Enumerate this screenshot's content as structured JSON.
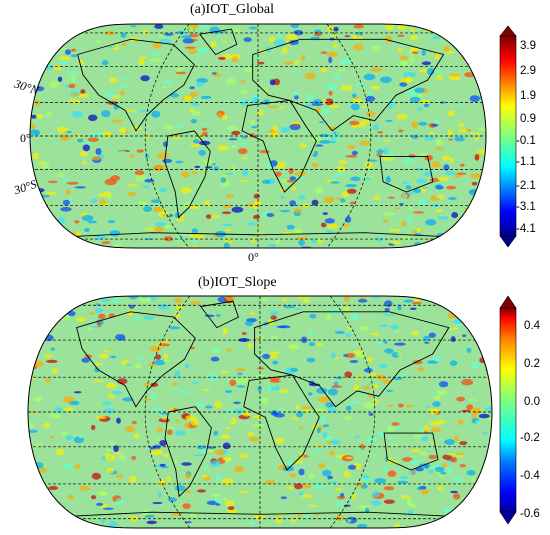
{
  "panels": [
    {
      "title": "(a)IOT_Global",
      "colorbar": {
        "ticks": [
          "3.9",
          "2.9",
          "1.9",
          "0.9",
          "-0.1",
          "-1.1",
          "-2.1",
          "-3.1",
          "-4.1"
        ],
        "extend": "both",
        "colormap": "jet"
      },
      "lat_labels": [
        "30°N",
        "0°",
        "30°S"
      ],
      "lon_labels": [
        "0°"
      ]
    },
    {
      "title": "(b)IOT_Slope",
      "colorbar": {
        "ticks": [
          "0.4",
          "0.2",
          "0.0",
          "-0.2",
          "-0.4",
          "-0.6"
        ],
        "extend": "both",
        "colormap": "jet"
      },
      "lat_labels": [],
      "lon_labels": []
    }
  ],
  "map": {
    "projection": "Robinson",
    "gridlines": "dashed",
    "coastline_color": "#000000",
    "border_color": "#808080",
    "background_field_color": "#8fe08f"
  }
}
